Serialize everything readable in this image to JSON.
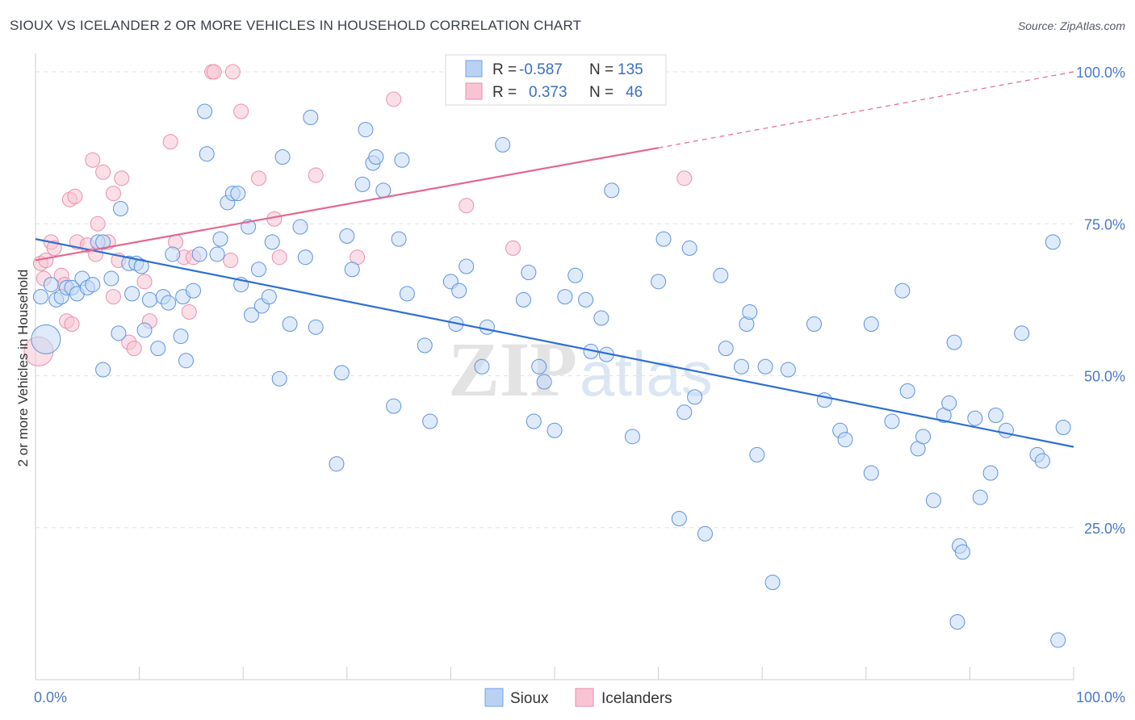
{
  "header": {
    "title": "SIOUX VS ICELANDER 2 OR MORE VEHICLES IN HOUSEHOLD CORRELATION CHART",
    "source": "Source: ZipAtlas.com"
  },
  "watermark": {
    "zip": "ZIP",
    "atlas": "atlas"
  },
  "legend": {
    "rows": [
      {
        "r_label": "R =",
        "r_value": "-0.587",
        "n_label": "N =",
        "n_value": "135",
        "color": "#6fa3e8"
      },
      {
        "r_label": "R =",
        "r_value": "0.373",
        "n_label": "N =",
        "n_value": "46",
        "color": "#f08aaa"
      }
    ]
  },
  "bottom_legend": [
    {
      "label": "Sioux",
      "color": "#6fa3e8"
    },
    {
      "label": "Icelanders",
      "color": "#f08aaa"
    }
  ],
  "chart_data": {
    "type": "scatter",
    "title": "SIOUX VS ICELANDER 2 OR MORE VEHICLES IN HOUSEHOLD CORRELATION CHART",
    "xlabel": "",
    "ylabel": "2 or more Vehicles in Household",
    "xlim": [
      0,
      100
    ],
    "ylim": [
      0,
      102
    ],
    "x_tick_labels": [
      "0.0%",
      "100.0%"
    ],
    "y_ticks": [
      25,
      50,
      75,
      100
    ],
    "y_tick_labels": [
      "25.0%",
      "50.0%",
      "75.0%",
      "100.0%"
    ],
    "grid": true,
    "legend_position": "top-center",
    "series": [
      {
        "name": "Sioux",
        "color": "#6fa3e8",
        "trend": {
          "x": [
            0,
            100
          ],
          "y": [
            72.5,
            38.3
          ]
        },
        "points": [
          [
            1,
            56
          ],
          [
            0.5,
            63
          ],
          [
            1.5,
            65
          ],
          [
            2,
            62.5
          ],
          [
            2.5,
            63
          ],
          [
            3,
            64.5
          ],
          [
            3.5,
            64.5
          ],
          [
            4,
            63.5
          ],
          [
            4.5,
            66
          ],
          [
            5,
            64.5
          ],
          [
            5.5,
            65
          ],
          [
            6,
            72
          ],
          [
            6.5,
            72
          ],
          [
            6.5,
            51
          ],
          [
            7.3,
            66
          ],
          [
            8,
            57
          ],
          [
            8.2,
            77.5
          ],
          [
            9,
            68.5
          ],
          [
            9.3,
            63.5
          ],
          [
            9.7,
            68.5
          ],
          [
            10.2,
            68
          ],
          [
            10.5,
            57.5
          ],
          [
            11,
            62.5
          ],
          [
            11.8,
            54.5
          ],
          [
            12.3,
            63
          ],
          [
            12.8,
            62
          ],
          [
            13.2,
            70
          ],
          [
            14,
            56.5
          ],
          [
            14.2,
            63
          ],
          [
            14.5,
            52.5
          ],
          [
            15.2,
            64
          ],
          [
            15.8,
            70
          ],
          [
            16.3,
            93.5
          ],
          [
            16.5,
            86.5
          ],
          [
            17.5,
            70
          ],
          [
            17.8,
            72.5
          ],
          [
            18.5,
            78.5
          ],
          [
            19,
            80
          ],
          [
            19.5,
            80
          ],
          [
            19.8,
            65
          ],
          [
            20.5,
            74.5
          ],
          [
            20.8,
            60
          ],
          [
            21.5,
            67.5
          ],
          [
            21.8,
            61.5
          ],
          [
            22.5,
            63
          ],
          [
            22.8,
            72
          ],
          [
            23.5,
            49.5
          ],
          [
            23.8,
            86
          ],
          [
            24.5,
            58.5
          ],
          [
            25.5,
            74.5
          ],
          [
            26,
            69.5
          ],
          [
            26.5,
            92.5
          ],
          [
            27,
            58
          ],
          [
            29,
            35.5
          ],
          [
            29.5,
            50.5
          ],
          [
            30,
            73
          ],
          [
            30.5,
            67.5
          ],
          [
            31.5,
            81.5
          ],
          [
            31.8,
            90.5
          ],
          [
            32.5,
            85
          ],
          [
            32.8,
            86
          ],
          [
            33.5,
            80.5
          ],
          [
            34.5,
            45
          ],
          [
            35,
            72.5
          ],
          [
            35.3,
            85.5
          ],
          [
            35.8,
            63.5
          ],
          [
            37.5,
            55
          ],
          [
            38,
            42.5
          ],
          [
            40,
            65.5
          ],
          [
            40.5,
            58.5
          ],
          [
            40.8,
            64
          ],
          [
            41.5,
            68
          ],
          [
            43,
            51.5
          ],
          [
            43.5,
            58
          ],
          [
            45,
            88
          ],
          [
            47,
            62.5
          ],
          [
            47.5,
            67
          ],
          [
            48,
            42.5
          ],
          [
            48.5,
            51.5
          ],
          [
            49,
            49
          ],
          [
            50,
            41
          ],
          [
            51,
            63
          ],
          [
            52,
            66.5
          ],
          [
            53,
            62.5
          ],
          [
            53.5,
            54
          ],
          [
            54.5,
            59.5
          ],
          [
            55,
            53.5
          ],
          [
            55.5,
            80.5
          ],
          [
            57.5,
            40
          ],
          [
            60,
            65.5
          ],
          [
            60.5,
            72.5
          ],
          [
            62,
            26.5
          ],
          [
            62.5,
            44
          ],
          [
            63,
            71
          ],
          [
            63.5,
            46.5
          ],
          [
            64.5,
            24
          ],
          [
            66,
            66.5
          ],
          [
            66.5,
            54.5
          ],
          [
            68,
            51.5
          ],
          [
            68.5,
            58.5
          ],
          [
            68.8,
            60.5
          ],
          [
            69.5,
            37
          ],
          [
            70.3,
            51.5
          ],
          [
            71,
            16
          ],
          [
            72.5,
            51
          ],
          [
            75,
            58.5
          ],
          [
            76,
            46
          ],
          [
            77.5,
            41
          ],
          [
            78,
            39.5
          ],
          [
            80.5,
            58.5
          ],
          [
            80.5,
            34
          ],
          [
            82.5,
            42.5
          ],
          [
            83.5,
            64
          ],
          [
            84,
            47.5
          ],
          [
            85,
            38
          ],
          [
            85.5,
            40
          ],
          [
            86.5,
            29.5
          ],
          [
            87.5,
            43.5
          ],
          [
            88,
            45.5
          ],
          [
            88.5,
            55.5
          ],
          [
            88.8,
            9.5
          ],
          [
            89,
            22
          ],
          [
            89.3,
            21
          ],
          [
            90.5,
            43
          ],
          [
            91,
            30
          ],
          [
            92,
            34
          ],
          [
            92.5,
            43.5
          ],
          [
            93.5,
            41
          ],
          [
            95,
            57
          ],
          [
            96.5,
            37
          ],
          [
            97,
            36
          ],
          [
            98,
            72
          ],
          [
            99,
            41.5
          ],
          [
            98.5,
            6.5
          ]
        ]
      },
      {
        "name": "Icelanders",
        "color": "#f08aaa",
        "trend": {
          "x": [
            0,
            60
          ],
          "y": [
            69,
            87.5
          ]
        },
        "trend_extension": {
          "x": [
            60,
            100
          ],
          "y": [
            87.5,
            100
          ]
        },
        "points": [
          [
            0.3,
            54
          ],
          [
            0.5,
            68.5
          ],
          [
            0.8,
            66
          ],
          [
            1,
            69
          ],
          [
            1.5,
            72
          ],
          [
            1.8,
            71
          ],
          [
            2.5,
            66.5
          ],
          [
            2.8,
            65
          ],
          [
            3,
            59
          ],
          [
            3.3,
            79
          ],
          [
            3.5,
            58.5
          ],
          [
            3.8,
            79.5
          ],
          [
            4,
            72
          ],
          [
            5,
            71.5
          ],
          [
            5.5,
            85.5
          ],
          [
            5.8,
            70
          ],
          [
            6,
            75
          ],
          [
            6.5,
            83.5
          ],
          [
            7,
            72
          ],
          [
            7.5,
            63
          ],
          [
            7.5,
            80
          ],
          [
            8,
            69
          ],
          [
            8.3,
            82.5
          ],
          [
            9,
            55.5
          ],
          [
            9.5,
            54.5
          ],
          [
            10.5,
            65.5
          ],
          [
            11,
            59
          ],
          [
            13,
            88.5
          ],
          [
            13.5,
            72
          ],
          [
            14.3,
            69.5
          ],
          [
            14.8,
            60.5
          ],
          [
            15.2,
            69.5
          ],
          [
            17,
            100
          ],
          [
            19,
            100
          ],
          [
            19.8,
            93.5
          ],
          [
            21.5,
            82.5
          ],
          [
            23,
            75.8
          ],
          [
            23.5,
            69.5
          ],
          [
            27,
            83
          ],
          [
            31,
            69.5
          ],
          [
            34.5,
            95.5
          ],
          [
            41.5,
            78
          ],
          [
            46,
            71
          ],
          [
            62.5,
            82.5
          ],
          [
            17.2,
            100
          ],
          [
            18.8,
            69
          ]
        ]
      }
    ]
  }
}
